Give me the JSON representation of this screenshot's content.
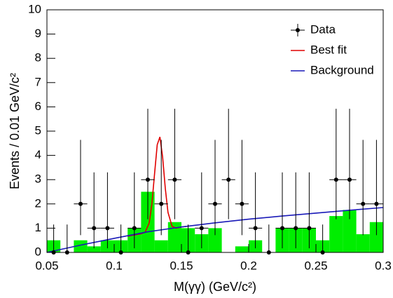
{
  "chart_data": {
    "type": "histogram",
    "xlabel": "M(γγ) (GeV/c²)",
    "ylabel": "Events / 0.01 GeV/c²",
    "xlim": [
      0.05,
      0.3
    ],
    "ylim": [
      0,
      10
    ],
    "xticks": [
      0.05,
      0.1,
      0.15,
      0.2,
      0.25,
      0.3
    ],
    "yticks": [
      0,
      1,
      2,
      3,
      4,
      5,
      6,
      7,
      8,
      9,
      10
    ],
    "legend": "top-right",
    "color": "#00ee00",
    "bins": [
      0.05,
      0.06,
      0.07,
      0.08,
      0.09,
      0.1,
      0.11,
      0.12,
      0.13,
      0.14,
      0.15,
      0.16,
      0.17,
      0.18,
      0.19,
      0.2,
      0.21,
      0.22,
      0.23,
      0.24,
      0.25,
      0.26,
      0.27,
      0.28,
      0.29,
      0.3
    ],
    "counts": [
      0.5,
      0,
      0.5,
      0.25,
      0.5,
      0.5,
      1.0,
      2.5,
      0.5,
      1.25,
      1.0,
      0.75,
      1.0,
      0,
      0.25,
      0.5,
      0,
      1.0,
      1.0,
      1.0,
      0.5,
      1.5,
      1.75,
      0.75,
      1.25
    ],
    "series": [
      {
        "name": "Data",
        "color": "#000000",
        "x": [
          0.055,
          0.065,
          0.075,
          0.085,
          0.095,
          0.105,
          0.115,
          0.125,
          0.135,
          0.145,
          0.155,
          0.165,
          0.175,
          0.185,
          0.195,
          0.205,
          0.215,
          0.225,
          0.235,
          0.245,
          0.255,
          0.265,
          0.275,
          0.285,
          0.295
        ],
        "values": [
          0,
          0,
          2,
          1,
          1,
          0,
          1,
          3,
          2,
          3,
          0,
          1,
          2,
          3,
          2,
          1,
          0,
          1,
          1,
          1,
          0,
          3,
          3,
          2,
          2
        ],
        "xerr": 0.005,
        "yerr_low": [
          0,
          0,
          1.29,
          0.83,
          0.83,
          0,
          0.83,
          1.63,
          1.29,
          1.63,
          0,
          0.83,
          1.29,
          1.63,
          1.29,
          0.83,
          0,
          0.83,
          0.83,
          0.83,
          0,
          1.63,
          1.63,
          1.29,
          1.29
        ],
        "yerr_high": [
          1.15,
          1.15,
          2.64,
          2.3,
          2.3,
          1.15,
          2.3,
          2.92,
          2.64,
          2.92,
          1.15,
          2.3,
          2.64,
          2.92,
          2.64,
          2.3,
          1.15,
          2.3,
          2.3,
          2.3,
          1.15,
          2.92,
          2.92,
          2.64,
          2.64
        ]
      },
      {
        "name": "Best fit",
        "color": "#e00000",
        "x": [
          0.11,
          0.115,
          0.12,
          0.123,
          0.126,
          0.128,
          0.13,
          0.132,
          0.134,
          0.136,
          0.138,
          0.14,
          0.143,
          0.146,
          0.15,
          0.155
        ],
        "values": [
          0.67,
          0.72,
          0.77,
          0.83,
          1.21,
          1.98,
          3.23,
          4.44,
          4.76,
          3.94,
          2.64,
          1.65,
          1.08,
          1.0,
          1.05,
          1.08
        ]
      },
      {
        "name": "Background",
        "color": "#1a1ab8",
        "x": [
          0.05,
          0.075,
          0.1,
          0.125,
          0.15,
          0.175,
          0.2,
          0.225,
          0.25,
          0.275,
          0.3
        ],
        "values": [
          0,
          0.3,
          0.58,
          0.85,
          1.05,
          1.22,
          1.37,
          1.5,
          1.62,
          1.74,
          1.85
        ]
      }
    ]
  }
}
